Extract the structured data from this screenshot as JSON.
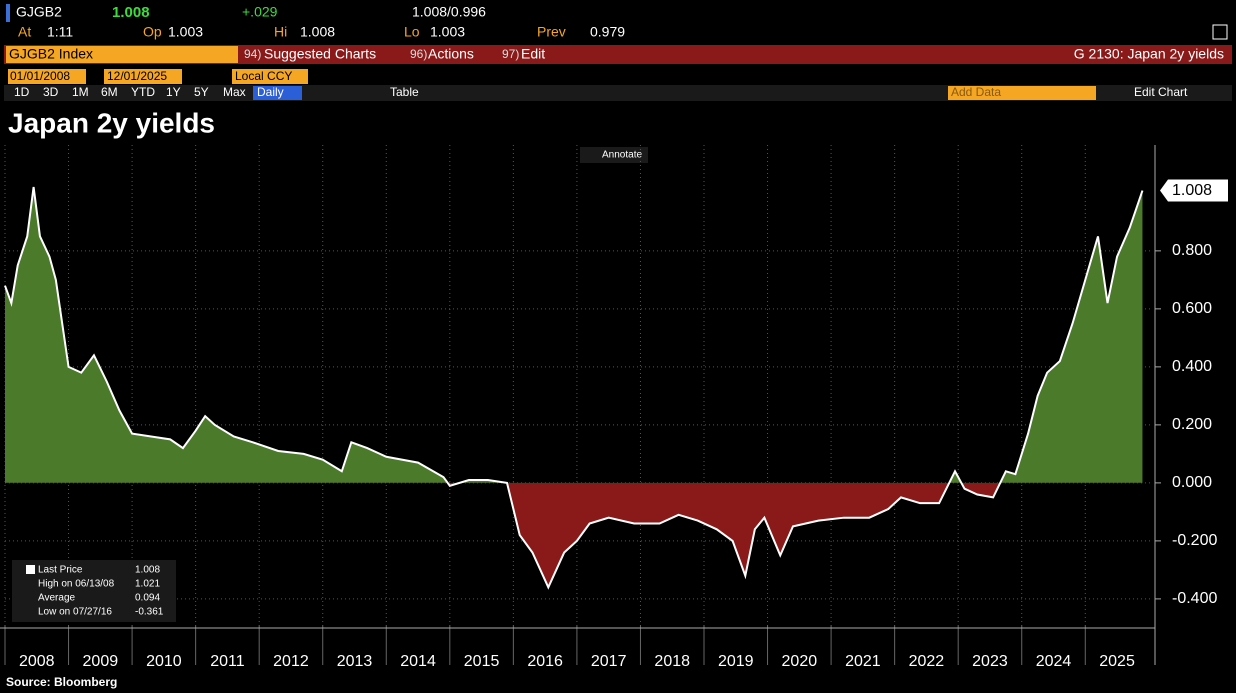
{
  "header": {
    "ticker": "GJGB2",
    "price": 1.008,
    "change": "+.029",
    "bid_ask": "1.008/0.996",
    "time_label": "At",
    "time": "1:11",
    "open_label": "Op",
    "open": 1.003,
    "high_label": "Hi",
    "high": 1.008,
    "low_label": "Lo",
    "low": 1.003,
    "prev_label": "Prev",
    "prev": 0.979
  },
  "menu": {
    "security": "GJGB2 Index",
    "suggested_code": "94)",
    "suggested": "Suggested Charts",
    "actions_code": "96)",
    "actions": "Actions",
    "edit_code": "97)",
    "edit": "Edit",
    "page": "G 2130: Japan 2y yields"
  },
  "controls": {
    "start": "01/01/2008",
    "end": "12/01/2025",
    "currency": "Local CCY",
    "periods": [
      "1D",
      "3D",
      "1M",
      "6M",
      "YTD",
      "1Y",
      "5Y",
      "Max"
    ],
    "frequency": "Daily",
    "table": "Table",
    "add_data": "Add Data",
    "edit_chart": "Edit Chart"
  },
  "chart_data": {
    "type": "area",
    "title": "Japan 2y yields",
    "annotate": "Annotate",
    "source": "Source: Bloomberg",
    "x": [
      2008.0,
      2008.1,
      2008.2,
      2008.35,
      2008.45,
      2008.55,
      2008.7,
      2008.8,
      2008.9,
      2009.0,
      2009.2,
      2009.4,
      2009.6,
      2009.8,
      2010.0,
      2010.3,
      2010.6,
      2010.8,
      2011.0,
      2011.15,
      2011.3,
      2011.6,
      2011.9,
      2012.3,
      2012.7,
      2013.0,
      2013.3,
      2013.45,
      2013.7,
      2014.0,
      2014.5,
      2014.9,
      2015.0,
      2015.3,
      2015.6,
      2015.9,
      2016.1,
      2016.3,
      2016.55,
      2016.8,
      2017.0,
      2017.2,
      2017.5,
      2017.9,
      2018.3,
      2018.6,
      2018.9,
      2019.2,
      2019.45,
      2019.65,
      2019.8,
      2019.95,
      2020.2,
      2020.4,
      2020.8,
      2021.2,
      2021.6,
      2021.9,
      2022.1,
      2022.4,
      2022.7,
      2022.95,
      2023.1,
      2023.3,
      2023.55,
      2023.75,
      2023.9,
      2024.1,
      2024.25,
      2024.4,
      2024.6,
      2024.8,
      2025.0,
      2025.2,
      2025.35,
      2025.5,
      2025.7,
      2025.9
    ],
    "series": [
      {
        "color": "#ffffff",
        "values": [
          0.68,
          0.62,
          0.75,
          0.85,
          1.02,
          0.85,
          0.78,
          0.7,
          0.55,
          0.4,
          0.38,
          0.44,
          0.35,
          0.25,
          0.17,
          0.16,
          0.15,
          0.12,
          0.18,
          0.23,
          0.2,
          0.16,
          0.14,
          0.11,
          0.1,
          0.08,
          0.04,
          0.14,
          0.12,
          0.09,
          0.07,
          0.02,
          -0.01,
          0.01,
          0.01,
          0.0,
          -0.18,
          -0.24,
          -0.36,
          -0.24,
          -0.2,
          -0.14,
          -0.12,
          -0.14,
          -0.14,
          -0.11,
          -0.13,
          -0.16,
          -0.2,
          -0.32,
          -0.16,
          -0.12,
          -0.25,
          -0.15,
          -0.13,
          -0.12,
          -0.12,
          -0.09,
          -0.05,
          -0.07,
          -0.07,
          0.04,
          -0.02,
          -0.04,
          -0.05,
          0.04,
          0.03,
          0.17,
          0.3,
          0.38,
          0.42,
          0.55,
          0.7,
          0.85,
          0.62,
          0.78,
          0.88,
          1.008
        ]
      }
    ],
    "fill_positive": "#4a7a2a",
    "fill_negative": "#8a1a1a",
    "xlim": [
      2008,
      2026.05
    ],
    "xticks": [
      2008,
      2009,
      2010,
      2011,
      2012,
      2013,
      2014,
      2015,
      2016,
      2017,
      2018,
      2019,
      2020,
      2021,
      2022,
      2023,
      2024,
      2025
    ],
    "ylim": [
      -0.49,
      1.165
    ],
    "yticks": [
      {
        "value": -0.4,
        "label": "-0.400"
      },
      {
        "value": -0.2,
        "label": "-0.200"
      },
      {
        "value": 0,
        "label": "0.000"
      },
      {
        "value": 0.2,
        "label": "0.200"
      },
      {
        "value": 0.4,
        "label": "0.400"
      },
      {
        "value": 0.6,
        "label": "0.600"
      },
      {
        "value": 0.8,
        "label": "0.800"
      }
    ],
    "grid": true,
    "stats": [
      {
        "label": "Last Price",
        "value": 1.008
      },
      {
        "label": "High on 06/13/08",
        "value": 1.021
      },
      {
        "label": "Average",
        "value": 0.094
      },
      {
        "label": "Low on 07/27/16",
        "value": -0.361
      }
    ]
  }
}
